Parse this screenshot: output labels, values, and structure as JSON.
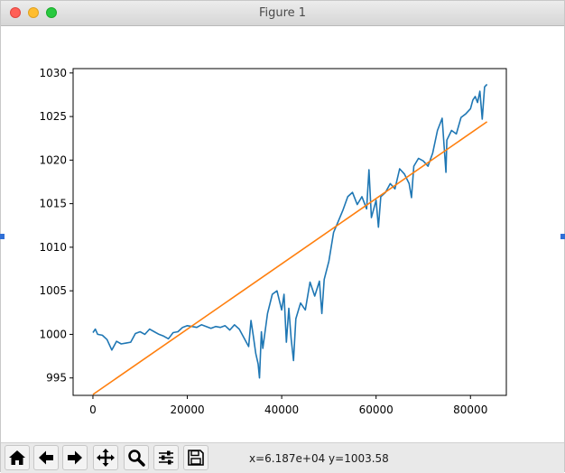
{
  "window": {
    "title": "Figure 1"
  },
  "toolbar": {
    "buttons": [
      {
        "name": "home-icon",
        "tooltip": "Home"
      },
      {
        "name": "back-arrow-icon",
        "tooltip": "Back"
      },
      {
        "name": "forward-arrow-icon",
        "tooltip": "Forward"
      },
      {
        "name": "pan-icon",
        "tooltip": "Pan"
      },
      {
        "name": "zoom-icon",
        "tooltip": "Zoom"
      },
      {
        "name": "configure-subplots-icon",
        "tooltip": "Configure subplots"
      },
      {
        "name": "save-icon",
        "tooltip": "Save"
      }
    ],
    "status": "x=6.187e+04 y=1003.58"
  },
  "colors": {
    "series_blue": "#1f77b4",
    "series_orange": "#ff7f0e"
  },
  "chart_data": {
    "type": "line",
    "title": "",
    "xlabel": "",
    "ylabel": "",
    "xlim": [
      -4200,
      87600
    ],
    "ylim": [
      993.0,
      1030.5
    ],
    "xticks": [
      0,
      20000,
      40000,
      60000,
      80000
    ],
    "yticks": [
      995,
      1000,
      1005,
      1010,
      1015,
      1020,
      1025,
      1030
    ],
    "grid": false,
    "legend": "none",
    "series": [
      {
        "color": "#1f77b4",
        "points": [
          [
            0,
            1000.2
          ],
          [
            500,
            1000.6
          ],
          [
            1000,
            1000.0
          ],
          [
            2000,
            999.9
          ],
          [
            3000,
            999.4
          ],
          [
            4000,
            998.2
          ],
          [
            5000,
            999.2
          ],
          [
            6000,
            998.9
          ],
          [
            7000,
            999.0
          ],
          [
            8000,
            999.1
          ],
          [
            9000,
            1000.1
          ],
          [
            10000,
            1000.3
          ],
          [
            11000,
            1000.0
          ],
          [
            12000,
            1000.6
          ],
          [
            13000,
            1000.3
          ],
          [
            14000,
            1000.0
          ],
          [
            15000,
            999.8
          ],
          [
            16000,
            999.5
          ],
          [
            17000,
            1000.2
          ],
          [
            18000,
            1000.3
          ],
          [
            19000,
            1000.8
          ],
          [
            20000,
            1001.0
          ],
          [
            21000,
            1000.9
          ],
          [
            22000,
            1000.8
          ],
          [
            23000,
            1001.1
          ],
          [
            24000,
            1000.9
          ],
          [
            25000,
            1000.7
          ],
          [
            26000,
            1000.9
          ],
          [
            27000,
            1000.8
          ],
          [
            28000,
            1001.0
          ],
          [
            29000,
            1000.5
          ],
          [
            30000,
            1001.1
          ],
          [
            31000,
            1000.6
          ],
          [
            32000,
            999.6
          ],
          [
            33000,
            998.6
          ],
          [
            33500,
            1001.6
          ],
          [
            34000,
            999.8
          ],
          [
            34500,
            997.8
          ],
          [
            35000,
            996.6
          ],
          [
            35300,
            995.0
          ],
          [
            35700,
            1000.3
          ],
          [
            36000,
            998.4
          ],
          [
            37000,
            1002.4
          ],
          [
            38000,
            1004.6
          ],
          [
            39000,
            1005.0
          ],
          [
            40000,
            1002.8
          ],
          [
            40500,
            1004.6
          ],
          [
            41000,
            999.1
          ],
          [
            41500,
            1003.0
          ],
          [
            42000,
            999.5
          ],
          [
            42500,
            997.0
          ],
          [
            43000,
            1001.8
          ],
          [
            44000,
            1003.6
          ],
          [
            45000,
            1002.8
          ],
          [
            46000,
            1006.0
          ],
          [
            47000,
            1004.4
          ],
          [
            48000,
            1006.1
          ],
          [
            48500,
            1002.4
          ],
          [
            49000,
            1006.3
          ],
          [
            50000,
            1008.4
          ],
          [
            51000,
            1011.7
          ],
          [
            52000,
            1013.0
          ],
          [
            53000,
            1014.3
          ],
          [
            54000,
            1015.8
          ],
          [
            55000,
            1016.3
          ],
          [
            56000,
            1014.9
          ],
          [
            57000,
            1015.8
          ],
          [
            58000,
            1014.4
          ],
          [
            58500,
            1018.9
          ],
          [
            59000,
            1013.4
          ],
          [
            60000,
            1015.4
          ],
          [
            60500,
            1012.3
          ],
          [
            61000,
            1015.8
          ],
          [
            62000,
            1016.3
          ],
          [
            63000,
            1017.3
          ],
          [
            64000,
            1016.7
          ],
          [
            65000,
            1019.0
          ],
          [
            66000,
            1018.4
          ],
          [
            67000,
            1017.3
          ],
          [
            67500,
            1015.7
          ],
          [
            68000,
            1019.3
          ],
          [
            69000,
            1020.2
          ],
          [
            70000,
            1019.9
          ],
          [
            71000,
            1019.3
          ],
          [
            72000,
            1020.8
          ],
          [
            73000,
            1023.4
          ],
          [
            74000,
            1024.8
          ],
          [
            74800,
            1018.6
          ],
          [
            75000,
            1022.3
          ],
          [
            76000,
            1023.4
          ],
          [
            77000,
            1023.0
          ],
          [
            78000,
            1024.9
          ],
          [
            79000,
            1025.3
          ],
          [
            80000,
            1025.9
          ],
          [
            80500,
            1026.9
          ],
          [
            81000,
            1027.3
          ],
          [
            81500,
            1026.6
          ],
          [
            82000,
            1027.9
          ],
          [
            82500,
            1024.7
          ],
          [
            83000,
            1028.4
          ],
          [
            83500,
            1028.7
          ]
        ]
      },
      {
        "color": "#ff7f0e",
        "points": [
          [
            0,
            993.1
          ],
          [
            83500,
            1024.4
          ]
        ]
      }
    ]
  }
}
